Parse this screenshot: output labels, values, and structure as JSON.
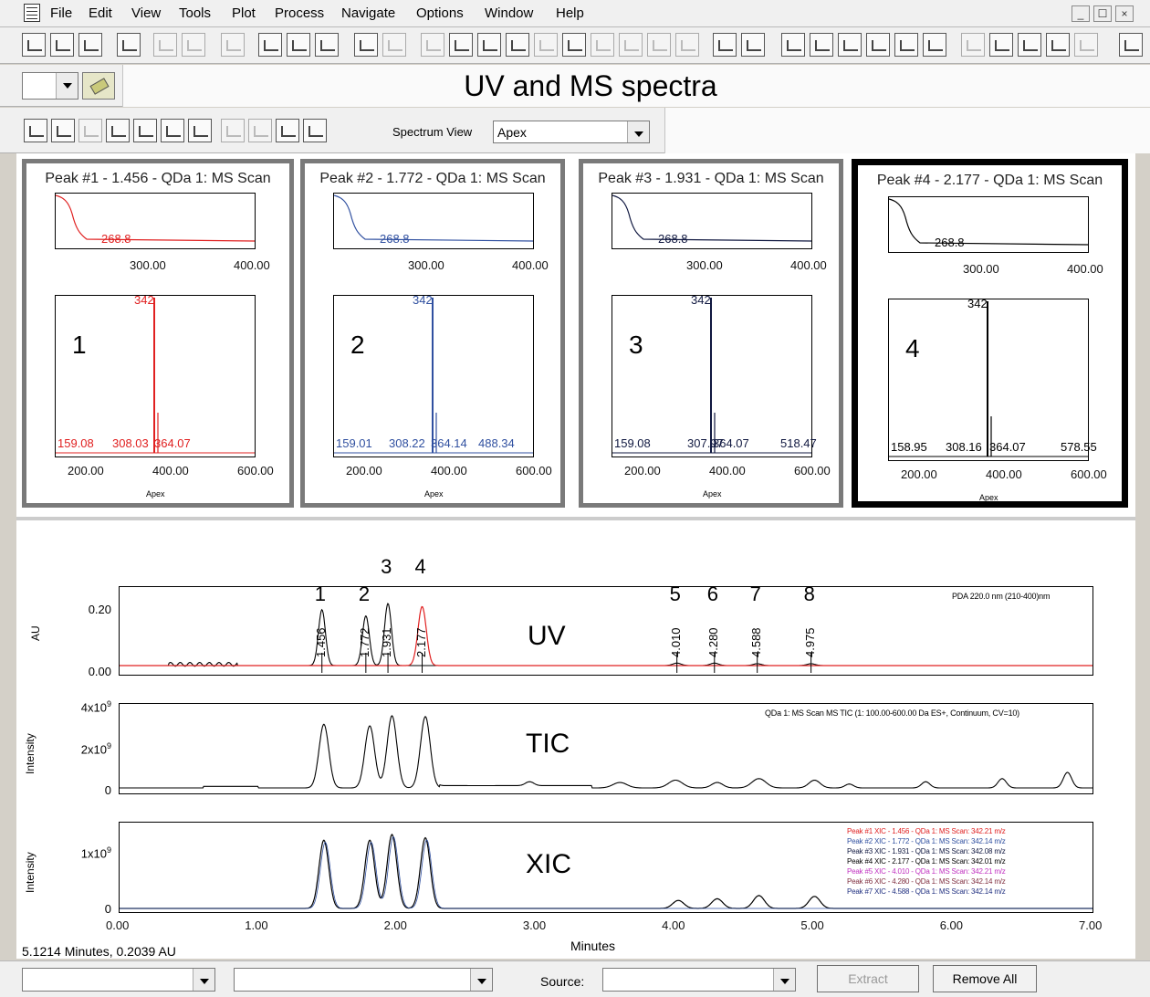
{
  "menubar": {
    "items": [
      "File",
      "Edit",
      "View",
      "Tools",
      "Plot",
      "Process",
      "Navigate",
      "Options",
      "Window",
      "Help"
    ],
    "window_buttons": [
      "_",
      "☐",
      "×"
    ]
  },
  "header": {
    "title": "UV and MS spectra"
  },
  "spectrum_view": {
    "label": "Spectrum View",
    "value": "Apex"
  },
  "panels": [
    {
      "title": "Peak #1 - 1.456 - QDa 1: MS Scan",
      "uv_label": "268.8",
      "uv_ticks": [
        "300.00",
        "400.00"
      ],
      "ms_top": "342",
      "ms_labels": [
        "159.08",
        "308.03",
        "364.07"
      ],
      "ms_ticks": [
        "200.00",
        "400.00",
        "600.00"
      ],
      "apex": "Apex",
      "number": "1",
      "color": "#e02020"
    },
    {
      "title": "Peak #2 - 1.772 - QDa 1: MS Scan",
      "uv_label": "268.8",
      "uv_ticks": [
        "300.00",
        "400.00"
      ],
      "ms_top": "342",
      "ms_labels": [
        "159.01",
        "308.22",
        "364.14",
        "488.34"
      ],
      "ms_ticks": [
        "200.00",
        "400.00",
        "600.00"
      ],
      "apex": "Apex",
      "number": "2",
      "color": "#3050a0"
    },
    {
      "title": "Peak #3 - 1.931 - QDa 1: MS Scan",
      "uv_label": "268.8",
      "uv_ticks": [
        "300.00",
        "400.00"
      ],
      "ms_top": "342",
      "ms_labels": [
        "159.08",
        "307.97",
        "364.07",
        "518.47"
      ],
      "ms_ticks": [
        "200.00",
        "400.00",
        "600.00"
      ],
      "apex": "Apex",
      "number": "3",
      "color": "#101840"
    },
    {
      "title": "Peak #4 - 2.177 - QDa 1: MS Scan",
      "uv_label": "268.8",
      "uv_ticks": [
        "300.00",
        "400.00"
      ],
      "ms_top": "342",
      "ms_labels": [
        "158.95",
        "308.16",
        "364.07",
        "578.55"
      ],
      "ms_ticks": [
        "200.00",
        "400.00",
        "600.00"
      ],
      "apex": "Apex",
      "number": "4",
      "color": "#000000"
    }
  ],
  "chrom": {
    "uv": {
      "label": "UV",
      "ylabel": "AU",
      "yticks": [
        "0.20",
        "0.00"
      ],
      "info": "PDA 220.0 nm (210-400)nm",
      "peaks": [
        "1",
        "2",
        "3",
        "4",
        "5",
        "6",
        "7",
        "8"
      ],
      "rts": [
        "1.456",
        "1.772",
        "1.931",
        "2.177",
        "4.010",
        "4.280",
        "4.588",
        "4.975"
      ]
    },
    "tic": {
      "label": "TIC",
      "ylabel": "Intensity",
      "yticks": [
        "4x10",
        "2x10",
        "0"
      ],
      "exp": "9",
      "info": "QDa 1: MS Scan MS TIC (1: 100.00-600.00 Da ES+, Continuum, CV=10)"
    },
    "xic": {
      "label": "XIC",
      "ylabel": "Intensity",
      "yticks": [
        "1x10",
        "0"
      ],
      "exp": "9",
      "legend": [
        {
          "text": "Peak #1 XIC - 1.456 - QDa 1: MS Scan: 342.21 m/z",
          "color": "#e02020"
        },
        {
          "text": "Peak #2 XIC - 1.772 - QDa 1: MS Scan: 342.14 m/z",
          "color": "#3050a0"
        },
        {
          "text": "Peak #3 XIC - 1.931 - QDa 1: MS Scan: 342.08 m/z",
          "color": "#101840"
        },
        {
          "text": "Peak #4 XIC - 2.177 - QDa 1: MS Scan: 342.01 m/z",
          "color": "#000000"
        },
        {
          "text": "Peak #5 XIC - 4.010 - QDa 1: MS Scan: 342.21 m/z",
          "color": "#c030c0"
        },
        {
          "text": "Peak #6 XIC - 4.280 - QDa 1: MS Scan: 342.14 m/z",
          "color": "#803040"
        },
        {
          "text": "Peak #7 XIC - 4.588 - QDa 1: MS Scan: 342.14 m/z",
          "color": "#203080"
        }
      ]
    },
    "xticks": [
      "0.00",
      "1.00",
      "2.00",
      "3.00",
      "4.00",
      "5.00",
      "6.00",
      "7.00"
    ],
    "xlabel": "Minutes",
    "status": "5.1214 Minutes, 0.2039 AU"
  },
  "bottombar": {
    "source_label": "Source:",
    "extract": "Extract",
    "remove_all": "Remove All"
  }
}
